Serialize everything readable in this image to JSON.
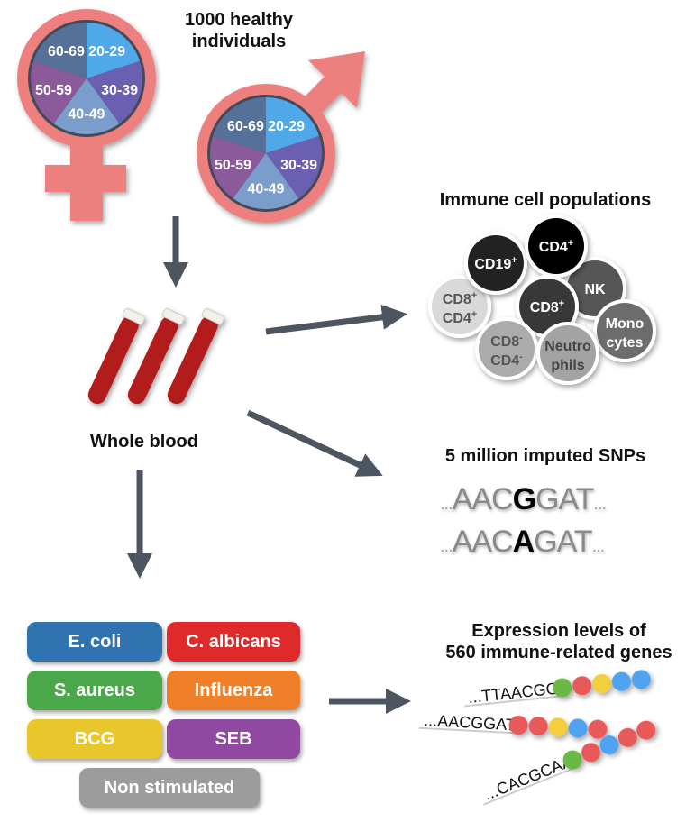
{
  "title": "1000 healthy individuals",
  "title_lines": [
    "1000 healthy",
    "individuals"
  ],
  "age_groups": [
    "20-29",
    "30-39",
    "40-49",
    "50-59",
    "60-69"
  ],
  "age_colors": [
    "#4fa8e8",
    "#6a5fb0",
    "#7a9dcc",
    "#8a5a9a",
    "#557199"
  ],
  "sex_symbol_color": "#ee7f7f",
  "arrow_color": "#4d5560",
  "whole_blood": "Whole blood",
  "immune": {
    "title": "Immune cell populations",
    "cells": [
      {
        "l1": "CD8",
        "s1": "+",
        "l2": "CD4",
        "s2": "+",
        "fill": "#d9d9d9",
        "text": "#555"
      },
      {
        "l1": "CD19",
        "s1": "+",
        "fill": "#222222",
        "text": "#fff"
      },
      {
        "l1": "NK",
        "fill": "#565656",
        "text": "#fff"
      },
      {
        "l1": "CD4",
        "s1": "+",
        "fill": "#000000",
        "text": "#fff"
      },
      {
        "l1": "CD8",
        "s1": "+",
        "fill": "#383838",
        "text": "#fff"
      },
      {
        "l1": "CD8",
        "s1": "-",
        "l2": "CD4",
        "s2": "-",
        "fill": "#ababab",
        "text": "#555"
      },
      {
        "l1": "Mono",
        "l2": "cytes",
        "fill": "#6c6c6c",
        "text": "#fff"
      },
      {
        "l1": "Neutro",
        "l2": "phils",
        "fill": "#a3a3a3",
        "text": "#444"
      }
    ]
  },
  "snps": {
    "title": "5 million imputed SNPs",
    "seq1": {
      "pre": "AAC",
      "var": "G",
      "post": "GAT"
    },
    "seq2": {
      "pre": "AAC",
      "var": "A",
      "post": "GAT"
    },
    "ellipsis": "..."
  },
  "expression": {
    "title_lines": [
      "Expression levels of",
      "560 immune-related genes"
    ],
    "rows": [
      {
        "seq": "...TTAACGG",
        "dots": [
          "#6cb844",
          "#e85a5a",
          "#f2cf3a",
          "#4fa3f0",
          "#4fa3f0"
        ]
      },
      {
        "seq": "...AACGGAT",
        "dots": [
          "#e85a5a",
          "#e85a5a",
          "#f2cf3a",
          "#4fa3f0",
          "#e85a5a"
        ]
      },
      {
        "seq": "...CACGCAA",
        "dots": [
          "#6cb844",
          "#e85a5a",
          "#4fa3f0",
          "#e85a5a",
          "#e85a5a"
        ]
      }
    ]
  },
  "stimuli": [
    {
      "label": "E. coli",
      "color": "#2f73b0"
    },
    {
      "label": "C. albicans",
      "color": "#e0292b"
    },
    {
      "label": "S. aureus",
      "color": "#4aa84a"
    },
    {
      "label": "Influenza",
      "color": "#f07f2a"
    },
    {
      "label": "BCG",
      "color": "#e9c62c"
    },
    {
      "label": "SEB",
      "color": "#9148a0"
    },
    {
      "label": "Non stimulated",
      "color": "#9c9c9c"
    }
  ]
}
